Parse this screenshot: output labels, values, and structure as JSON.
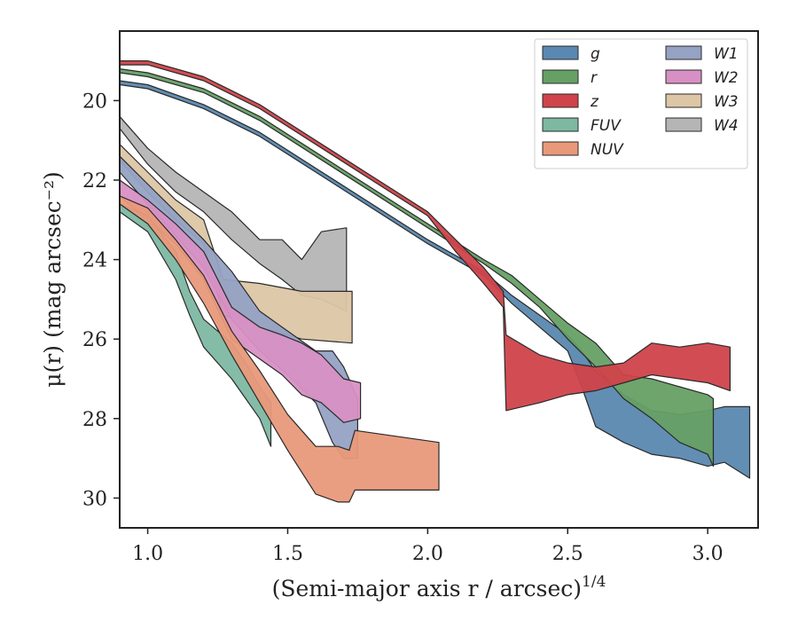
{
  "chart_data": {
    "type": "area",
    "title": "",
    "xlabel": "(Semi-major axis r / arcsec)",
    "xlabel_sup": "1/4",
    "ylabel": "μ(r) (mag arcsec⁻²)",
    "xlim": [
      0.9,
      3.18
    ],
    "ylim": [
      30.75,
      18.25
    ],
    "y_inverted": true,
    "xticks": [
      1.0,
      1.5,
      2.0,
      2.5,
      3.0
    ],
    "xtick_labels": [
      "1.0",
      "1.5",
      "2.0",
      "2.5",
      "3.0"
    ],
    "yticks": [
      20,
      22,
      24,
      26,
      28,
      30
    ],
    "ytick_labels": [
      "20",
      "22",
      "24",
      "26",
      "28",
      "30"
    ],
    "grid": false,
    "legend_position": "top-right",
    "legend_columns": 2,
    "series": [
      {
        "name": "W4",
        "color": "#b5b5b5",
        "points": [
          [
            0.9,
            20.4,
            20.7
          ],
          [
            1.0,
            21.2,
            21.6
          ],
          [
            1.1,
            21.8,
            22.3
          ],
          [
            1.2,
            22.3,
            22.8
          ],
          [
            1.3,
            22.8,
            23.5
          ],
          [
            1.4,
            23.5,
            24.1
          ],
          [
            1.48,
            23.5,
            24.5
          ],
          [
            1.55,
            24.0,
            24.9
          ],
          [
            1.62,
            23.3,
            25.0
          ],
          [
            1.71,
            23.2,
            25.3
          ]
        ]
      },
      {
        "name": "W3",
        "color": "#dcc6a5",
        "points": [
          [
            0.9,
            21.1,
            21.5
          ],
          [
            1.0,
            21.8,
            22.3
          ],
          [
            1.1,
            22.5,
            23.0
          ],
          [
            1.2,
            23.0,
            23.6
          ],
          [
            1.27,
            24.5,
            25.4
          ],
          [
            1.4,
            24.6,
            25.7
          ],
          [
            1.55,
            24.8,
            26.0
          ],
          [
            1.73,
            24.8,
            26.1
          ]
        ]
      },
      {
        "name": "W1",
        "color": "#95a2c4",
        "points": [
          [
            0.9,
            21.4,
            21.8
          ],
          [
            1.0,
            22.1,
            22.6
          ],
          [
            1.1,
            22.8,
            23.4
          ],
          [
            1.2,
            23.5,
            24.2
          ],
          [
            1.3,
            24.3,
            25.5
          ],
          [
            1.4,
            25.3,
            26.3
          ],
          [
            1.5,
            25.8,
            26.9
          ],
          [
            1.6,
            26.3,
            27.6
          ],
          [
            1.66,
            26.3,
            28.6
          ],
          [
            1.7,
            26.7,
            29.0
          ],
          [
            1.75,
            27.5,
            29.0
          ]
        ]
      },
      {
        "name": "W2",
        "color": "#d890c4",
        "points": [
          [
            0.9,
            22.0,
            22.4
          ],
          [
            1.0,
            22.5,
            23.0
          ],
          [
            1.1,
            23.1,
            23.6
          ],
          [
            1.2,
            23.8,
            24.5
          ],
          [
            1.3,
            25.2,
            26.0
          ],
          [
            1.4,
            25.7,
            26.5
          ],
          [
            1.48,
            25.9,
            26.9
          ],
          [
            1.55,
            26.1,
            27.4
          ],
          [
            1.62,
            26.4,
            27.6
          ],
          [
            1.7,
            27.0,
            28.1
          ],
          [
            1.76,
            27.1,
            28.0
          ]
        ]
      },
      {
        "name": "FUV",
        "color": "#7db8a2",
        "points": [
          [
            0.9,
            22.6,
            22.8
          ],
          [
            1.0,
            22.9,
            23.3
          ],
          [
            1.1,
            23.8,
            24.5
          ],
          [
            1.15,
            24.8,
            25.4
          ],
          [
            1.2,
            25.5,
            26.2
          ],
          [
            1.25,
            25.8,
            26.6
          ],
          [
            1.3,
            26.1,
            27.0
          ],
          [
            1.35,
            26.6,
            27.5
          ],
          [
            1.4,
            27.2,
            28.0
          ],
          [
            1.44,
            27.6,
            28.7
          ]
        ]
      },
      {
        "name": "NUV",
        "color": "#e9997a",
        "points": [
          [
            0.9,
            22.4,
            22.6
          ],
          [
            1.0,
            22.7,
            23.1
          ],
          [
            1.1,
            23.5,
            24.0
          ],
          [
            1.2,
            24.4,
            25.1
          ],
          [
            1.3,
            25.8,
            26.4
          ],
          [
            1.4,
            26.8,
            27.6
          ],
          [
            1.5,
            27.9,
            28.8
          ],
          [
            1.6,
            28.7,
            29.9
          ],
          [
            1.68,
            28.7,
            30.1
          ],
          [
            1.72,
            28.8,
            30.1
          ],
          [
            1.74,
            28.3,
            29.8
          ],
          [
            2.04,
            28.6,
            29.8
          ]
        ]
      },
      {
        "name": "g",
        "color": "#5a88b0",
        "points": [
          [
            0.9,
            19.5,
            19.6
          ],
          [
            1.0,
            19.6,
            19.7
          ],
          [
            1.2,
            20.1,
            20.2
          ],
          [
            1.4,
            20.8,
            20.9
          ],
          [
            1.6,
            21.7,
            21.8
          ],
          [
            1.8,
            22.6,
            22.7
          ],
          [
            2.0,
            23.5,
            23.6
          ],
          [
            2.2,
            24.3,
            24.4
          ],
          [
            2.3,
            24.9,
            25.1
          ],
          [
            2.4,
            25.4,
            25.7
          ],
          [
            2.5,
            25.9,
            26.3
          ],
          [
            2.55,
            26.3,
            27.2
          ],
          [
            2.6,
            26.8,
            28.2
          ],
          [
            2.7,
            27.4,
            28.6
          ],
          [
            2.8,
            27.8,
            28.9
          ],
          [
            2.9,
            27.9,
            29.0
          ],
          [
            3.0,
            27.8,
            29.2
          ],
          [
            3.06,
            27.7,
            29.1
          ],
          [
            3.15,
            27.7,
            29.5
          ]
        ]
      },
      {
        "name": "r",
        "color": "#66a065",
        "points": [
          [
            0.9,
            19.2,
            19.3
          ],
          [
            1.0,
            19.3,
            19.4
          ],
          [
            1.2,
            19.7,
            19.8
          ],
          [
            1.4,
            20.4,
            20.5
          ],
          [
            1.6,
            21.3,
            21.4
          ],
          [
            1.8,
            22.2,
            22.3
          ],
          [
            2.0,
            23.1,
            23.2
          ],
          [
            2.2,
            24.0,
            24.1
          ],
          [
            2.3,
            24.4,
            24.6
          ],
          [
            2.4,
            25.0,
            25.2
          ],
          [
            2.5,
            25.6,
            26.0
          ],
          [
            2.6,
            26.1,
            26.7
          ],
          [
            2.7,
            26.9,
            27.5
          ],
          [
            2.8,
            27.0,
            28.0
          ],
          [
            2.9,
            27.2,
            28.6
          ],
          [
            3.0,
            27.4,
            28.9
          ],
          [
            3.02,
            27.5,
            29.2
          ]
        ]
      },
      {
        "name": "z",
        "color": "#cf434a",
        "points": [
          [
            0.9,
            19.0,
            19.1
          ],
          [
            1.0,
            19.0,
            19.1
          ],
          [
            1.2,
            19.4,
            19.5
          ],
          [
            1.4,
            20.1,
            20.2
          ],
          [
            1.6,
            21.0,
            21.1
          ],
          [
            1.8,
            21.9,
            22.0
          ],
          [
            2.0,
            22.8,
            22.9
          ],
          [
            2.1,
            23.5,
            23.8
          ],
          [
            2.2,
            24.2,
            24.6
          ],
          [
            2.27,
            24.8,
            25.2
          ],
          [
            2.28,
            25.9,
            27.8
          ],
          [
            2.4,
            26.4,
            27.6
          ],
          [
            2.5,
            26.6,
            27.4
          ],
          [
            2.6,
            26.7,
            27.3
          ],
          [
            2.7,
            26.6,
            27.1
          ],
          [
            2.8,
            26.1,
            26.9
          ],
          [
            2.9,
            26.2,
            27.0
          ],
          [
            3.0,
            26.1,
            27.1
          ],
          [
            3.08,
            26.2,
            27.3
          ]
        ]
      }
    ]
  },
  "legend": {
    "col1": [
      {
        "label": "g",
        "color": "#5a88b0"
      },
      {
        "label": "r",
        "color": "#66a065"
      },
      {
        "label": "z",
        "color": "#cf434a"
      },
      {
        "label": "FUV",
        "color": "#7db8a2"
      },
      {
        "label": "NUV",
        "color": "#e9997a"
      }
    ],
    "col2": [
      {
        "label": "W1",
        "color": "#95a2c4"
      },
      {
        "label": "W2",
        "color": "#d890c4"
      },
      {
        "label": "W3",
        "color": "#dcc6a5"
      },
      {
        "label": "W4",
        "color": "#b5b5b5"
      }
    ]
  }
}
